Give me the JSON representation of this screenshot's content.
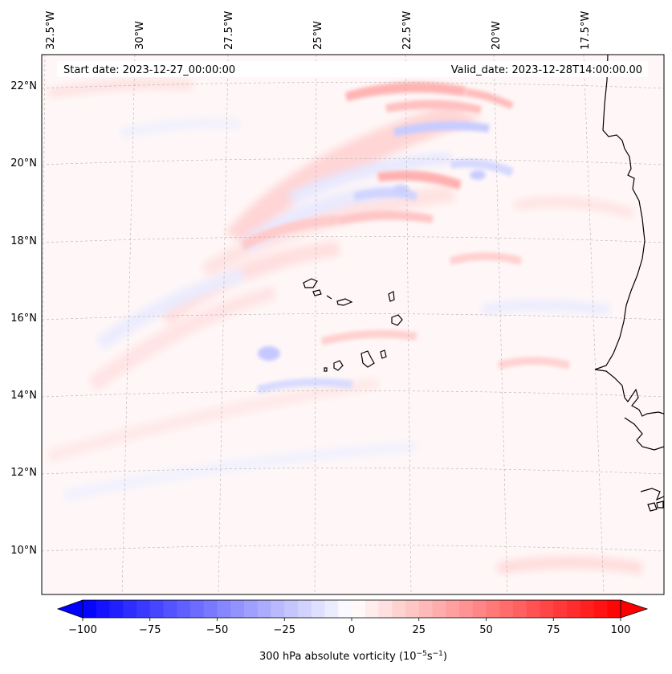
{
  "map": {
    "variable": "300 hPa absolute vorticity",
    "start_date": "Start date: 2023-12-27_00:00:00",
    "valid_date": "Valid_date: 2023-12-28T14:00:00.00",
    "lon_labels": [
      "32.5°W",
      "30°W",
      "27.5°W",
      "25°W",
      "22.5°W",
      "20°W",
      "17.5°W"
    ],
    "lat_labels": [
      "22°N",
      "20°N",
      "18°N",
      "16°N",
      "14°N",
      "12°N",
      "10°N"
    ]
  },
  "colorbar": {
    "label_prefix": "300 hPa absolute vorticity (10",
    "label_exp1": "−5",
    "label_mid": "s",
    "label_exp2": "−1",
    "label_suffix": ")",
    "ticks": [
      "−100",
      "−75",
      "−50",
      "−25",
      "0",
      "25",
      "50",
      "75",
      "100"
    ],
    "min": -100,
    "max": 100,
    "step": 5,
    "color_low": "#0000ff",
    "color_mid": "#ffffff",
    "color_high": "#ff0000"
  }
}
